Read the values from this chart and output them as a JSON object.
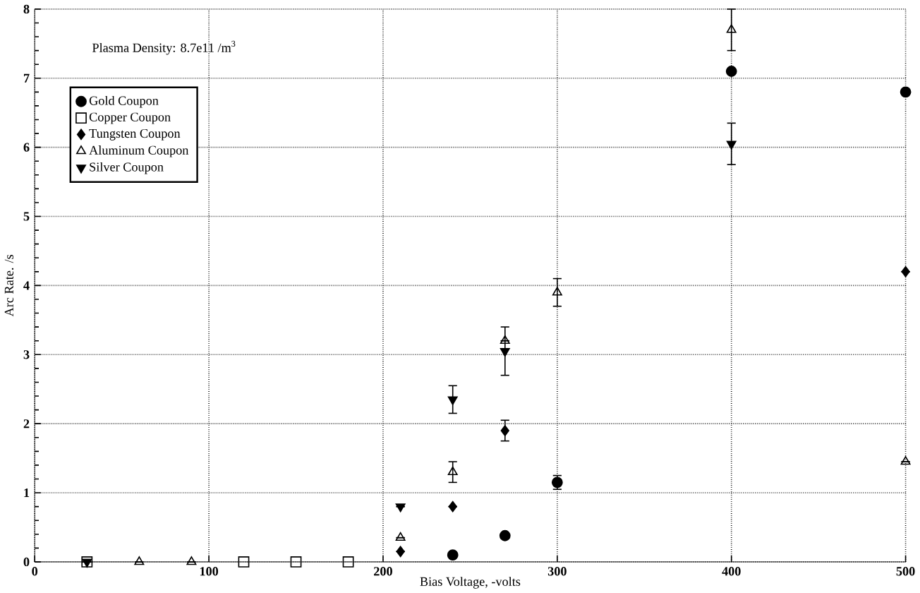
{
  "chart_data": {
    "type": "scatter",
    "xlabel": "Bias Voltage, -volts",
    "ylabel": "Arc Rate. /s",
    "annotations": [
      "Plasma Density: 8.7e11 /m$^{3}$"
    ],
    "xlim": [
      0,
      500
    ],
    "ylim": [
      0,
      8
    ],
    "xticks": [
      0,
      100,
      200,
      300,
      400,
      500
    ],
    "yticks": [
      0,
      1,
      2,
      3,
      4,
      5,
      6,
      7,
      8
    ],
    "grid": true,
    "legend": "top left",
    "series": [
      {
        "name": "Gold Coupon",
        "color": "#000000",
        "marker": "circle",
        "x": [
          240,
          270,
          300,
          400,
          500
        ],
        "values": [
          0.1,
          0.38,
          1.15,
          7.1,
          6.8
        ],
        "errors": [
          null,
          null,
          0.1,
          null,
          null
        ]
      },
      {
        "name": "Copper Coupon",
        "color": "#000000",
        "marker": "square",
        "x": [
          30,
          120,
          150,
          180
        ],
        "values": [
          0,
          0,
          0,
          0
        ]
      },
      {
        "name": "Tungsten Coupon",
        "color": "#000000",
        "marker": "diamond",
        "x": [
          210,
          240,
          270,
          500
        ],
        "values": [
          0.15,
          0.8,
          1.9,
          4.2
        ],
        "errors": [
          null,
          null,
          0.15,
          null
        ]
      },
      {
        "name": "Aluminum Coupon",
        "color": "#000000",
        "marker": "triangle",
        "x": [
          60,
          90,
          210,
          240,
          270,
          300,
          400,
          500
        ],
        "values": [
          0,
          0,
          0.35,
          1.3,
          3.2,
          3.9,
          7.7,
          1.45
        ],
        "errors": [
          null,
          null,
          null,
          0.15,
          null,
          0.2,
          0.3,
          null
        ]
      },
      {
        "name": "Silver Coupon",
        "color": "#000000",
        "marker": "triangle down",
        "x": [
          30,
          210,
          240,
          270,
          400
        ],
        "values": [
          0,
          0.8,
          2.35,
          3.05,
          6.05
        ],
        "errors": [
          null,
          null,
          0.2,
          0.35,
          0.3
        ]
      }
    ]
  }
}
